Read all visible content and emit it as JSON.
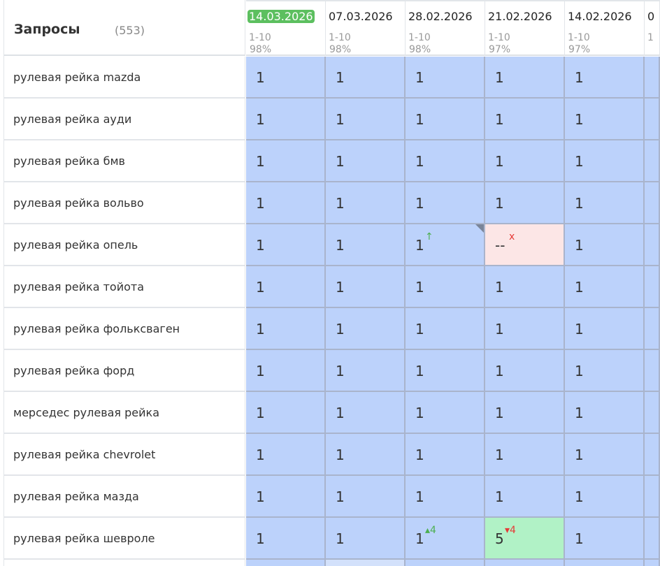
{
  "header": {
    "title": "Запросы",
    "count": "(553)"
  },
  "columns": [
    {
      "date": "14.03.2026",
      "range": "1-10",
      "pct": "98%",
      "active": true
    },
    {
      "date": "07.03.2026",
      "range": "1-10",
      "pct": "98%"
    },
    {
      "date": "28.02.2026",
      "range": "1-10",
      "pct": "98%"
    },
    {
      "date": "21.02.2026",
      "range": "1-10",
      "pct": "97%"
    },
    {
      "date": "14.02.2026",
      "range": "1-10",
      "pct": "97%"
    },
    {
      "date": "0",
      "range": "1",
      "pct": ""
    }
  ],
  "rows": [
    {
      "query": "рулевая рейка mazda",
      "cells": [
        {
          "v": "1"
        },
        {
          "v": "1"
        },
        {
          "v": "1"
        },
        {
          "v": "1"
        },
        {
          "v": "1"
        },
        {
          "v": ""
        }
      ]
    },
    {
      "query": "рулевая рейка ауди",
      "cells": [
        {
          "v": "1"
        },
        {
          "v": "1"
        },
        {
          "v": "1"
        },
        {
          "v": "1"
        },
        {
          "v": "1"
        },
        {
          "v": ""
        }
      ]
    },
    {
      "query": "рулевая рейка бмв",
      "cells": [
        {
          "v": "1"
        },
        {
          "v": "1"
        },
        {
          "v": "1"
        },
        {
          "v": "1"
        },
        {
          "v": "1"
        },
        {
          "v": ""
        }
      ]
    },
    {
      "query": "рулевая рейка вольво",
      "cells": [
        {
          "v": "1"
        },
        {
          "v": "1"
        },
        {
          "v": "1"
        },
        {
          "v": "1"
        },
        {
          "v": "1"
        },
        {
          "v": ""
        }
      ]
    },
    {
      "query": "рулевая рейка опель",
      "cells": [
        {
          "v": "1"
        },
        {
          "v": "1"
        },
        {
          "v": "1",
          "delta": "↑",
          "dir": "up",
          "corner": true
        },
        {
          "v": "--",
          "delta": "x",
          "dir": "down",
          "status": "red"
        },
        {
          "v": "1"
        },
        {
          "v": ""
        }
      ]
    },
    {
      "query": "рулевая рейка тойота",
      "cells": [
        {
          "v": "1"
        },
        {
          "v": "1"
        },
        {
          "v": "1"
        },
        {
          "v": "1"
        },
        {
          "v": "1"
        },
        {
          "v": ""
        }
      ]
    },
    {
      "query": "рулевая рейка фольксваген",
      "cells": [
        {
          "v": "1"
        },
        {
          "v": "1"
        },
        {
          "v": "1"
        },
        {
          "v": "1"
        },
        {
          "v": "1"
        },
        {
          "v": ""
        }
      ]
    },
    {
      "query": "рулевая рейка форд",
      "cells": [
        {
          "v": "1"
        },
        {
          "v": "1"
        },
        {
          "v": "1"
        },
        {
          "v": "1"
        },
        {
          "v": "1"
        },
        {
          "v": ""
        }
      ]
    },
    {
      "query": "мерседес рулевая рейка",
      "cells": [
        {
          "v": "1"
        },
        {
          "v": "1"
        },
        {
          "v": "1"
        },
        {
          "v": "1"
        },
        {
          "v": "1"
        },
        {
          "v": ""
        }
      ]
    },
    {
      "query": "рулевая рейка chevrolet",
      "cells": [
        {
          "v": "1"
        },
        {
          "v": "1"
        },
        {
          "v": "1"
        },
        {
          "v": "1"
        },
        {
          "v": "1"
        },
        {
          "v": ""
        }
      ]
    },
    {
      "query": "рулевая рейка мазда",
      "cells": [
        {
          "v": "1"
        },
        {
          "v": "1"
        },
        {
          "v": "1"
        },
        {
          "v": "1"
        },
        {
          "v": "1"
        },
        {
          "v": ""
        }
      ]
    },
    {
      "query": "рулевая рейка шевроле",
      "cells": [
        {
          "v": "1"
        },
        {
          "v": "1"
        },
        {
          "v": "1",
          "delta": "▴4",
          "dir": "up"
        },
        {
          "v": "5",
          "delta": "▾4",
          "dir": "down",
          "status": "green"
        },
        {
          "v": "1"
        },
        {
          "v": ""
        }
      ]
    }
  ],
  "colors": {
    "cell": "#bcd2fb",
    "red": "#fce6e6",
    "green": "#b1f2c6",
    "active_date": "#5cbf5f"
  }
}
